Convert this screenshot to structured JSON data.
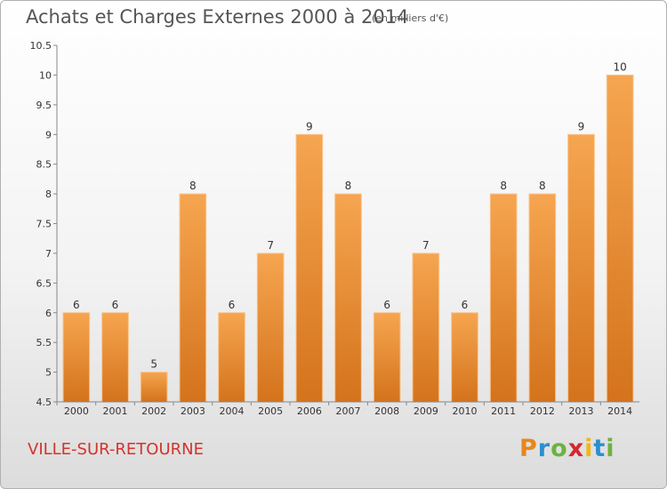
{
  "header": {
    "title": "Achats et Charges Externes 2000 à 2014",
    "subtitle": "(en milliers d'€)"
  },
  "footer": {
    "commune": "VILLE-SUR-RETOURNE",
    "brand": "Proxiti",
    "brand_colors": [
      "#e8871e",
      "#2a8fd0",
      "#6cb33f",
      "#d6262e",
      "#f2b616",
      "#2a8fd0",
      "#6cb33f"
    ]
  },
  "chart_data": {
    "type": "bar",
    "title": "Achats et Charges Externes 2000 à 2014",
    "subtitle": "(en milliers d'€)",
    "categories": [
      "2000",
      "2001",
      "2002",
      "2003",
      "2004",
      "2005",
      "2006",
      "2007",
      "2008",
      "2009",
      "2010",
      "2011",
      "2012",
      "2013",
      "2014"
    ],
    "values": [
      6,
      6,
      5,
      8,
      6,
      7,
      9,
      8,
      6,
      7,
      6,
      8,
      8,
      9,
      10
    ],
    "ylim": [
      4.5,
      10.5
    ],
    "yticks": [
      "4.5",
      "5",
      "5.5",
      "6",
      "6.5",
      "7",
      "7.5",
      "8",
      "8.5",
      "9",
      "9.5",
      "10",
      "10.5"
    ],
    "grid": false,
    "bar_color": "#f0953a",
    "bar_color_dark": "#d4731c"
  }
}
